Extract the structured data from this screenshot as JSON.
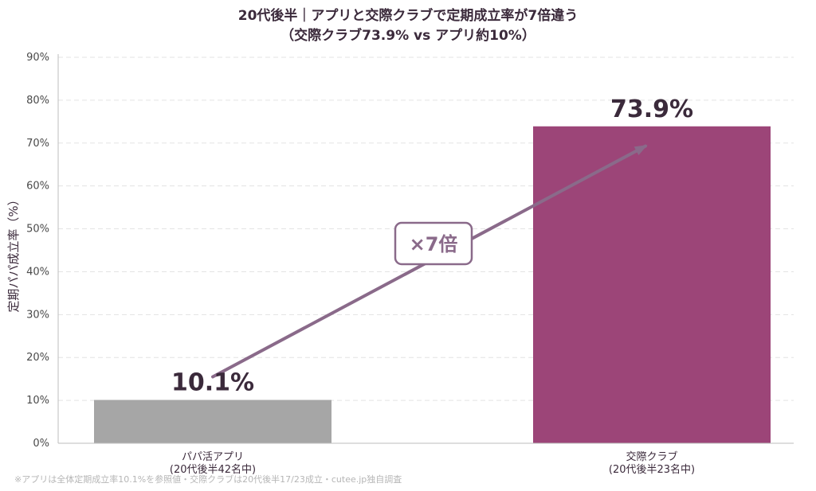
{
  "chart_data": {
    "type": "bar",
    "title": "20代後半｜アプリと交際クラブで定期成立率が7倍違う",
    "subtitle": "（交際クラブ73.9% vs アプリ約10%）",
    "ylabel": "定期パパ成立率（%）",
    "xlabel": "",
    "categories": [
      [
        "パパ活アプリ",
        "(20代後半42名中)"
      ],
      [
        "交際クラブ",
        "(20代後半23名中)"
      ]
    ],
    "values": [
      10.1,
      73.9
    ],
    "value_labels": [
      "10.1%",
      "73.9%"
    ],
    "colors": [
      "#a6a6a6",
      "#9c4578"
    ],
    "ylim": [
      0,
      90
    ],
    "yticks": [
      0,
      10,
      20,
      30,
      40,
      50,
      60,
      70,
      80,
      90
    ],
    "ytick_labels": [
      "0%",
      "10%",
      "20%",
      "30%",
      "40%",
      "50%",
      "60%",
      "70%",
      "80%",
      "90%"
    ],
    "grid": true,
    "annotation": {
      "text": "×7倍",
      "arrow_color": "#8a6a8a",
      "arrow_from": {
        "category": 0,
        "y": 15.5
      },
      "arrow_to": {
        "category": 1,
        "y": 69.3
      }
    },
    "footnote": "※アプリは全体定期成立率10.1%を参照値・交際クラブは20代後半17/23成立・cutee.jp独自調査"
  }
}
